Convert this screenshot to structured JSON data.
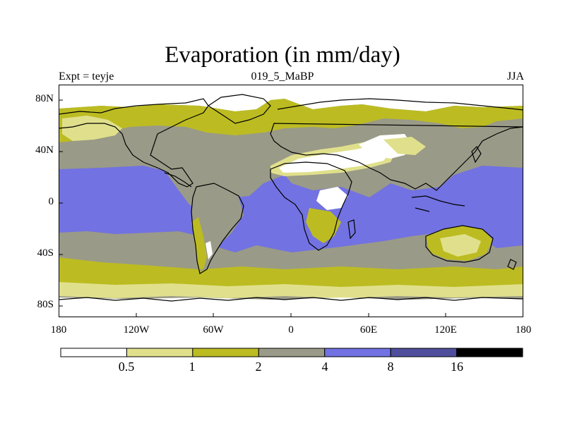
{
  "title": "Evaporation (in mm/day)",
  "left_string": "Expt = teyje",
  "center_string": "019_5_MaBP",
  "right_string": "JJA",
  "lat_labels": [
    "80N",
    "40N",
    "0",
    "40S",
    "80S"
  ],
  "lon_labels": [
    "180",
    "120W",
    "60W",
    "0",
    "60E",
    "120E",
    "180"
  ],
  "colorbar": {
    "colors": [
      "#ffffff",
      "#e0e08c",
      "#bcbc22",
      "#9a9a88",
      "#7272e2",
      "#4e4e9c",
      "#000000"
    ],
    "labels": [
      "0.5",
      "1",
      "2",
      "4",
      "8",
      "16"
    ]
  },
  "palette": {
    "white": "#ffffff",
    "lt_yellow": "#e0e08c",
    "olive": "#bcbc22",
    "gray": "#9a9a88",
    "blue": "#7272e2",
    "coast": "#000000"
  }
}
